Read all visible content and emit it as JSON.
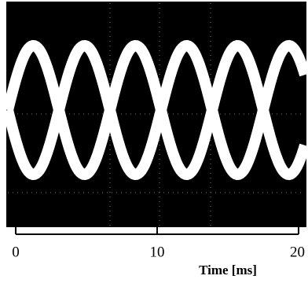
{
  "chart_data": {
    "type": "eye-diagram",
    "xlabel": "Time [ms]",
    "xlim": [
      0,
      20
    ],
    "xticks": [
      0,
      10,
      20
    ],
    "background": "#000000",
    "trace_color": "#ffffff"
  }
}
